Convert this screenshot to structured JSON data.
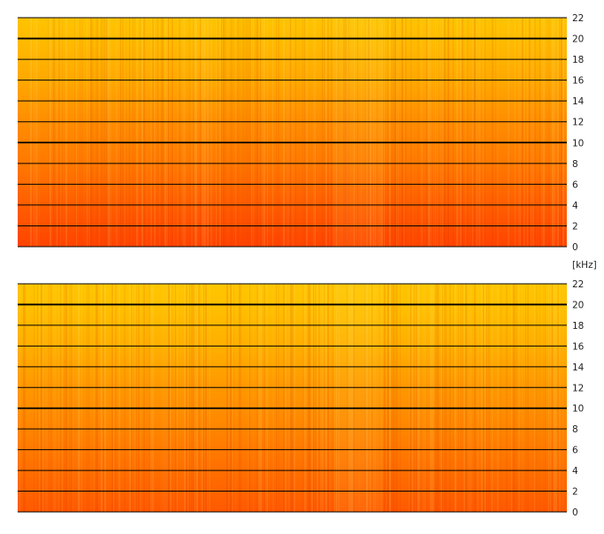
{
  "unit_label": "[kHz]",
  "colors": {
    "low": "#ff3300",
    "high": "#ffe000",
    "gridline": "#000000",
    "background": "#ffffff"
  },
  "chart_data": [
    {
      "type": "heatmap",
      "channel": "top",
      "ylabel": "[kHz]",
      "ylim": [
        0,
        22
      ],
      "yticks": [
        0,
        2,
        4,
        6,
        8,
        10,
        12,
        14,
        16,
        18,
        20,
        22
      ],
      "emphasized_gridlines": [
        10,
        20
      ],
      "grid": true,
      "colormap": [
        "#ff3300",
        "#ff7a00",
        "#ffb000",
        "#ffe000"
      ],
      "intensity_by_frequency": [
        {
          "khz": 0,
          "level": 0.08
        },
        {
          "khz": 4,
          "level": 0.2
        },
        {
          "khz": 8,
          "level": 0.33
        },
        {
          "khz": 12,
          "level": 0.45
        },
        {
          "khz": 16,
          "level": 0.62
        },
        {
          "khz": 20,
          "level": 0.75
        },
        {
          "khz": 22,
          "level": 0.8
        }
      ]
    },
    {
      "type": "heatmap",
      "channel": "bottom",
      "ylabel": "[kHz]",
      "ylim": [
        0,
        22
      ],
      "yticks": [
        0,
        2,
        4,
        6,
        8,
        10,
        12,
        14,
        16,
        18,
        20,
        22
      ],
      "emphasized_gridlines": [
        10,
        20
      ],
      "grid": true,
      "colormap": [
        "#ff3300",
        "#ff7a00",
        "#ffb000",
        "#ffe000"
      ],
      "intensity_by_frequency": [
        {
          "khz": 0,
          "level": 0.18
        },
        {
          "khz": 4,
          "level": 0.28
        },
        {
          "khz": 8,
          "level": 0.4
        },
        {
          "khz": 12,
          "level": 0.52
        },
        {
          "khz": 16,
          "level": 0.66
        },
        {
          "khz": 20,
          "level": 0.78
        },
        {
          "khz": 22,
          "level": 0.82
        }
      ]
    }
  ]
}
